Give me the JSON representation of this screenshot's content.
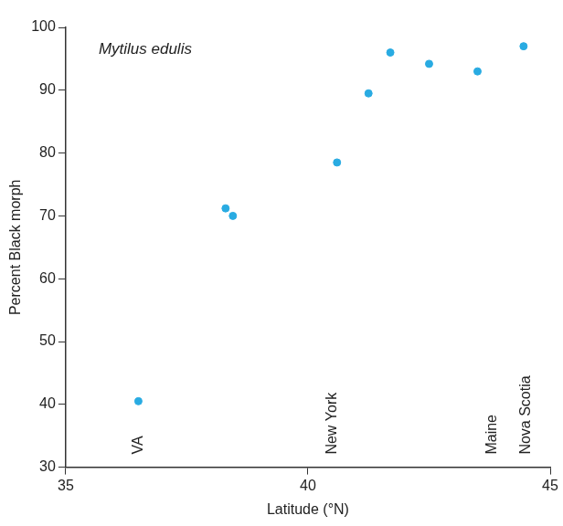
{
  "chart_data": {
    "type": "scatter",
    "title": "Mytilus edulis",
    "x_label": "Latitude (°N)",
    "y_label": "Percent Black morph",
    "x": [
      36.5,
      38.3,
      38.45,
      40.6,
      41.25,
      41.7,
      42.5,
      43.5,
      44.45
    ],
    "values": [
      40.5,
      71.2,
      70,
      78.5,
      89.5,
      96,
      94.2,
      93,
      97
    ],
    "color": "#29abe2",
    "marker": "circle",
    "xlim": [
      35,
      45
    ],
    "xticks": [
      35,
      40,
      45
    ],
    "ylim": [
      30,
      100
    ],
    "yticks": [
      30,
      40,
      50,
      60,
      70,
      80,
      90,
      100
    ],
    "grid": false,
    "annotations": [
      {
        "text": "VA",
        "x": 36.5
      },
      {
        "text": "New York",
        "x": 40.5
      },
      {
        "text": "Maine",
        "x": 43.8
      },
      {
        "text": "Nova Scotia",
        "x": 44.5
      }
    ]
  }
}
